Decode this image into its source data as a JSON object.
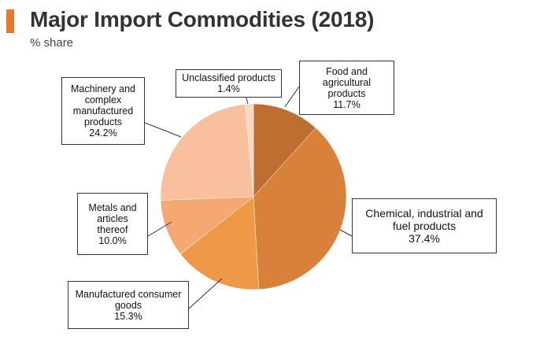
{
  "header": {
    "title": "Major Import Commodities (2018)",
    "subtitle": "% share",
    "accent_color": "#e8762c"
  },
  "chart_data": {
    "type": "pie",
    "title": "Major Import Commodities (2018)",
    "subtitle": "% share",
    "slices": [
      {
        "label": "Food and agricultural products",
        "value": 11.7,
        "value_label": "11.7%",
        "color": "#bf6e31"
      },
      {
        "label": "Chemical, industrial and fuel products",
        "value": 37.4,
        "value_label": "37.4%",
        "color": "#d8813b"
      },
      {
        "label": "Manufactured consumer goods",
        "value": 15.3,
        "value_label": "15.3%",
        "color": "#ef9848"
      },
      {
        "label": "Metals and articles thereof",
        "value": 10.0,
        "value_label": "10.0%",
        "color": "#f6a873"
      },
      {
        "label": "Machinery and complex manufactured products",
        "value": 24.2,
        "value_label": "24.2%",
        "color": "#f9c09e"
      },
      {
        "label": "Unclassified products",
        "value": 1.4,
        "value_label": "1.4%",
        "color": "#fbd6c3"
      }
    ]
  },
  "labels": {
    "food": {
      "lines": [
        "Food and",
        "agricultural",
        "products"
      ],
      "value": "11.7%"
    },
    "chemical": {
      "lines": [
        "Chemical, industrial and",
        "fuel products"
      ],
      "value": "37.4%"
    },
    "consumer": {
      "lines": [
        "Manufactured consumer",
        "goods"
      ],
      "value": "15.3%"
    },
    "metals": {
      "lines": [
        "Metals and",
        "articles",
        "thereof"
      ],
      "value": "10.0%"
    },
    "machinery": {
      "lines": [
        "Machinery and",
        "complex",
        "manufactured",
        "products"
      ],
      "value": "24.2%"
    },
    "unclassified": {
      "lines": [
        "Unclassified products"
      ],
      "value": "1.4%"
    }
  }
}
